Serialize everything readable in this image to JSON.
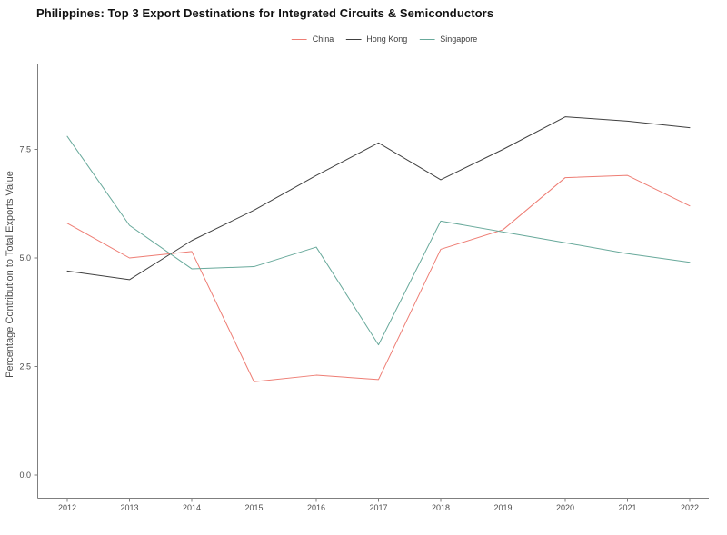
{
  "chart_data": {
    "type": "line",
    "title": "Philippines: Top 3 Export Destinations for Integrated Circuits & Semiconductors",
    "xlabel": "",
    "ylabel": "Percentage Contribution to Total Exports Value",
    "x": [
      2012,
      2013,
      2014,
      2015,
      2016,
      2017,
      2018,
      2019,
      2020,
      2021,
      2022
    ],
    "series": [
      {
        "name": "China",
        "color": "#ee7d74",
        "values": [
          5.8,
          5.0,
          5.15,
          2.15,
          2.3,
          2.2,
          5.2,
          5.65,
          6.85,
          6.9,
          6.2
        ]
      },
      {
        "name": "Hong Kong",
        "color": "#404040",
        "values": [
          4.7,
          4.5,
          5.4,
          6.1,
          6.9,
          7.65,
          6.8,
          7.5,
          8.25,
          8.15,
          8.0
        ]
      },
      {
        "name": "Singapore",
        "color": "#68a99b",
        "values": [
          7.8,
          5.75,
          4.75,
          4.8,
          5.25,
          3.0,
          5.85,
          5.6,
          5.35,
          5.1,
          4.9
        ]
      }
    ],
    "yticks": [
      0.0,
      2.5,
      5.0,
      7.5
    ],
    "ylim": [
      -0.55,
      9.45
    ],
    "xlim": [
      2011.5,
      2022.3
    ],
    "grid": false,
    "legend_position": "top-center",
    "axis_color": "#7f7f7f",
    "tick_label_color": "#4d4d4d"
  }
}
